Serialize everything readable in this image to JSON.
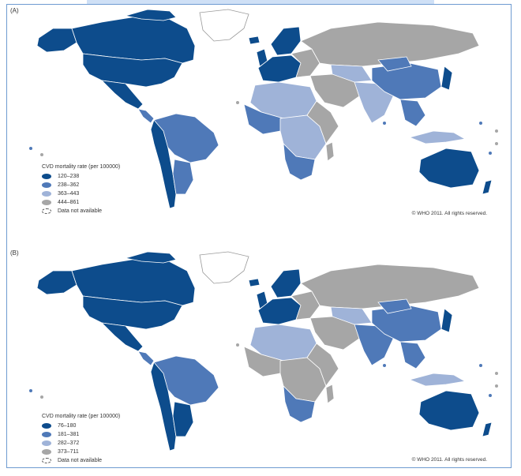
{
  "colors": {
    "c1": "#0d4c8c",
    "c2": "#4f79b8",
    "c3": "#9fb3d8",
    "c4": "#a6a6a6",
    "na": "#ffffff",
    "border": "#ffffff"
  },
  "panels": [
    {
      "label": "(A)",
      "legend_title": "CVD mortality rate (per 100000)",
      "legend": [
        {
          "range": "120–238"
        },
        {
          "range": "238–362"
        },
        {
          "range": "363–443"
        },
        {
          "range": "444–861"
        },
        {
          "range": "Data not available"
        }
      ],
      "credit": "© WHO 2011. All rights reserved."
    },
    {
      "label": "(B)",
      "legend_title": "CVD mortality rate (per 100000)",
      "legend": [
        {
          "range": "76–180"
        },
        {
          "range": "181–381"
        },
        {
          "range": "282–372"
        },
        {
          "range": "373–711"
        },
        {
          "range": "Data not available"
        }
      ],
      "credit": "© WHO 2011. All rights reserved."
    }
  ]
}
